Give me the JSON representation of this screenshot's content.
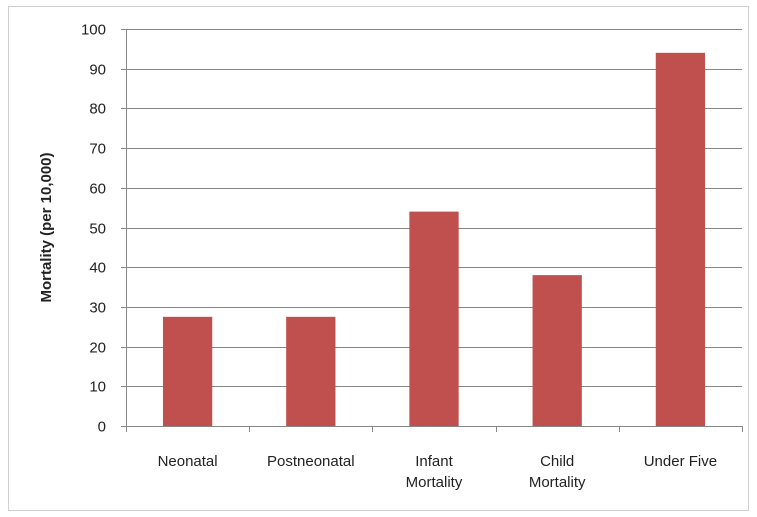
{
  "colors": {
    "bar": "#C0504D",
    "grid": "#868686",
    "axis": "#868686",
    "text": "#222222"
  },
  "chart_data": {
    "type": "bar",
    "title": "",
    "xlabel": "",
    "ylabel": "Mortality (per 10,000)",
    "ylim": [
      0,
      100
    ],
    "yticks": [
      0,
      10,
      20,
      30,
      40,
      50,
      60,
      70,
      80,
      90,
      100
    ],
    "grid": true,
    "legend": "none",
    "categories": [
      [
        "Neonatal"
      ],
      [
        "Postneonatal"
      ],
      [
        "Infant",
        "Mortality"
      ],
      [
        "Child",
        "Mortality"
      ],
      [
        "Under Five"
      ]
    ],
    "values": [
      27.5,
      27.5,
      54,
      38,
      94
    ]
  }
}
